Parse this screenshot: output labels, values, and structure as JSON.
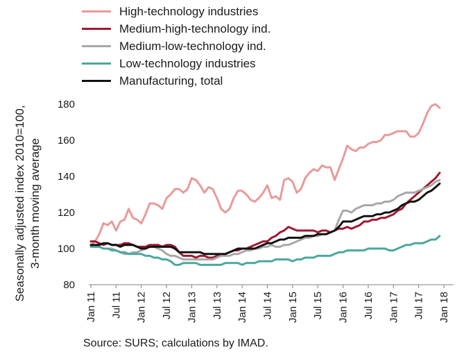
{
  "chart_data": {
    "type": "line",
    "title": "",
    "ylabel": "Seasonally adjusted index 2010=100,\n3-month moving average",
    "xlabel": "",
    "ylim": [
      80,
      180
    ],
    "yticks": [
      80,
      100,
      120,
      140,
      160,
      180
    ],
    "xticks": [
      "Jan 11",
      "Jul 11",
      "Jan 12",
      "Jul 12",
      "Jan 13",
      "Jul 13",
      "Jan 14",
      "Jul 14",
      "Jan 15",
      "Jul 15",
      "Jan 16",
      "Jul 16",
      "Jan 17",
      "Jul 17",
      "Jan 18"
    ],
    "x_start": "Jan 11",
    "x_end": "Dec 17",
    "grid": "none",
    "legend_position": "top-left",
    "series": [
      {
        "name": "High-technology industries",
        "color": "#e89a9a",
        "width": 3,
        "values": [
          102,
          104,
          108,
          114,
          113,
          115,
          110,
          115,
          116,
          122,
          117,
          116,
          114,
          119,
          125,
          125,
          124,
          122,
          128,
          130,
          133,
          133,
          131,
          133,
          139,
          138,
          135,
          131,
          134,
          133,
          128,
          122,
          120,
          122,
          128,
          132,
          132,
          130,
          127,
          126,
          128,
          131,
          135,
          128,
          129,
          127,
          138,
          139,
          137,
          131,
          133,
          139,
          142,
          144,
          143,
          146,
          145,
          145,
          138,
          144,
          150,
          157,
          155,
          154,
          156,
          156,
          158,
          159,
          159,
          160,
          163,
          163,
          164,
          165,
          165,
          165,
          162,
          162,
          164,
          169,
          175,
          179,
          180,
          178
        ]
      },
      {
        "name": "Medium-high-technology ind.",
        "color": "#a01830",
        "width": 3,
        "values": [
          104,
          104,
          103,
          102,
          103,
          102,
          102,
          102,
          103,
          103,
          102,
          101,
          101,
          101,
          102,
          102,
          102,
          101,
          102,
          102,
          101,
          98,
          96,
          96,
          96,
          95,
          96,
          96,
          95,
          95,
          96,
          96,
          97,
          98,
          99,
          99,
          100,
          100,
          101,
          102,
          103,
          104,
          104,
          106,
          107,
          109,
          110,
          112,
          111,
          110,
          110,
          110,
          110,
          110,
          109,
          110,
          110,
          109,
          110,
          111,
          111,
          112,
          111,
          112,
          113,
          115,
          115,
          116,
          116,
          117,
          117,
          118,
          119,
          121,
          122,
          125,
          127,
          129,
          131,
          133,
          135,
          137,
          139,
          142
        ]
      },
      {
        "name": "Medium-low-technology ind.",
        "color": "#a8a8a8",
        "width": 3,
        "values": [
          102,
          101,
          101,
          100,
          100,
          100,
          99,
          98,
          97,
          97,
          98,
          98,
          99,
          100,
          101,
          101,
          100,
          99,
          97,
          96,
          96,
          95,
          94,
          94,
          94,
          94,
          94,
          94,
          94,
          94,
          95,
          96,
          96,
          96,
          97,
          97,
          98,
          99,
          99,
          100,
          100,
          101,
          101,
          102,
          101,
          101,
          102,
          102,
          103,
          104,
          105,
          106,
          106,
          107,
          107,
          108,
          108,
          109,
          110,
          116,
          121,
          121,
          120,
          122,
          123,
          124,
          124,
          124,
          125,
          125,
          126,
          126,
          127,
          129,
          130,
          131,
          131,
          131,
          132,
          133,
          134,
          135,
          137,
          138
        ]
      },
      {
        "name": "Low-technology industries",
        "color": "#4aa89c",
        "width": 3,
        "values": [
          101,
          101,
          101,
          100,
          100,
          99,
          99,
          98,
          98,
          97,
          97,
          97,
          97,
          96,
          96,
          95,
          95,
          94,
          94,
          93,
          91,
          91,
          92,
          92,
          92,
          92,
          91,
          91,
          91,
          91,
          91,
          91,
          92,
          92,
          92,
          92,
          91,
          92,
          92,
          92,
          93,
          93,
          93,
          93,
          94,
          94,
          94,
          94,
          93,
          94,
          94,
          95,
          95,
          95,
          96,
          96,
          96,
          96,
          97,
          98,
          98,
          99,
          99,
          99,
          99,
          99,
          100,
          100,
          100,
          100,
          100,
          99,
          99,
          100,
          101,
          102,
          102,
          103,
          103,
          103,
          104,
          105,
          105,
          107
        ]
      },
      {
        "name": "Manufacturing, total",
        "color": "#111111",
        "width": 3,
        "values": [
          102,
          102,
          102,
          103,
          103,
          102,
          102,
          101,
          102,
          102,
          102,
          101,
          100,
          100,
          101,
          101,
          101,
          101,
          101,
          101,
          100,
          98,
          98,
          98,
          98,
          98,
          98,
          97,
          97,
          97,
          97,
          97,
          97,
          98,
          99,
          100,
          100,
          100,
          100,
          100,
          101,
          102,
          103,
          103,
          104,
          105,
          105,
          106,
          106,
          106,
          106,
          107,
          107,
          107,
          108,
          108,
          108,
          109,
          110,
          112,
          115,
          115,
          115,
          116,
          117,
          118,
          118,
          118,
          119,
          119,
          120,
          120,
          121,
          122,
          124,
          125,
          126,
          126,
          127,
          129,
          131,
          132,
          134,
          136
        ]
      }
    ],
    "source": "Source: SURS; calculations by IMAD."
  }
}
